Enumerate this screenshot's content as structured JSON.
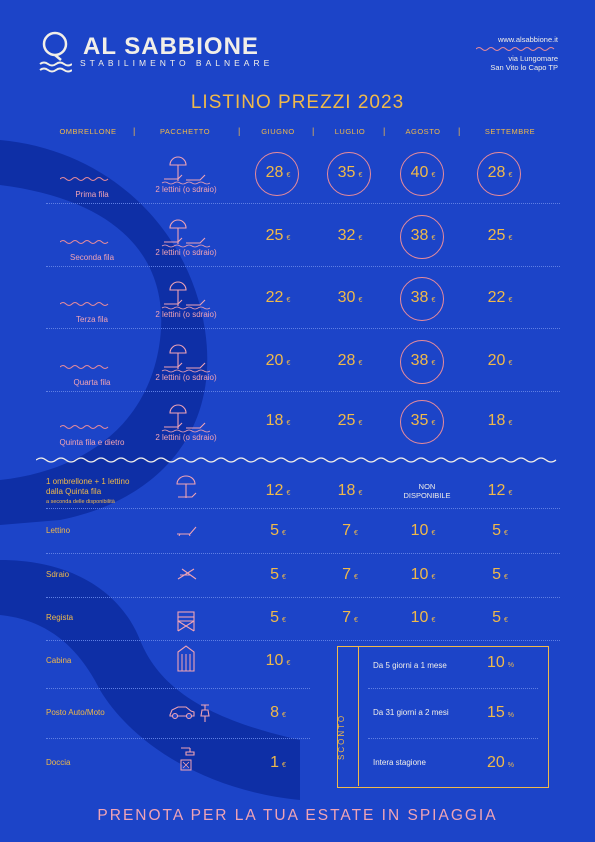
{
  "brand": {
    "name": "AL SABBIONE",
    "tagline": "STABILIMENTO BALNEARE"
  },
  "contact": {
    "website": "www.alsabbione.it",
    "address_line1": "via Lungomare",
    "address_line2": "San Vito lo Capo TP"
  },
  "title": "LISTINO PREZZI 2023",
  "columns": [
    "OMBRELLONE",
    "PACCHETTO",
    "GIUGNO",
    "LUGLIO",
    "AGOSTO",
    "SETTEMBRE"
  ],
  "currency": "€",
  "rows": [
    {
      "label": "Prima fila",
      "package": "2 lettini (o sdraio)",
      "prices": [
        "28",
        "35",
        "40",
        "28"
      ]
    },
    {
      "label": "Seconda fila",
      "package": "2 lettini (o sdraio)",
      "prices": [
        "25",
        "32",
        "38",
        "25"
      ]
    },
    {
      "label": "Terza fila",
      "package": "2 lettini (o sdraio)",
      "prices": [
        "22",
        "30",
        "38",
        "22"
      ]
    },
    {
      "label": "Quarta fila",
      "package": "2 lettini (o sdraio)",
      "prices": [
        "20",
        "28",
        "38",
        "20"
      ]
    },
    {
      "label": "Quinta fila e dietro",
      "package": "2 lettini (o sdraio)",
      "prices": [
        "18",
        "25",
        "35",
        "18"
      ]
    }
  ],
  "extras": [
    {
      "label_line1": "1 ombrellone + 1 lettino",
      "label_line2": "dalla Quinta fila",
      "note": "a seconda delle disponibilità",
      "prices": [
        "12",
        "18",
        "",
        "12"
      ],
      "unavailable_line1": "NON",
      "unavailable_line2": "DISPONIBILE"
    },
    {
      "label": "Lettino",
      "prices": [
        "5",
        "7",
        "10",
        "5"
      ]
    },
    {
      "label": "Sdraio",
      "prices": [
        "5",
        "7",
        "10",
        "5"
      ]
    },
    {
      "label": "Regista",
      "prices": [
        "5",
        "7",
        "10",
        "5"
      ]
    },
    {
      "label": "Cabina",
      "price": "10"
    },
    {
      "label": "Posto Auto/Moto",
      "price": "8"
    },
    {
      "label": "Doccia",
      "price": "1"
    }
  ],
  "discounts": {
    "title": "SCONTO",
    "items": [
      {
        "label": "Da 5 giorni a 1 mese",
        "value": "10",
        "unit": "%"
      },
      {
        "label": "Da 31 giorni a 2 mesi",
        "value": "15",
        "unit": "%"
      },
      {
        "label": "Intera stagione",
        "value": "20",
        "unit": "%"
      }
    ]
  },
  "footer": "PRENOTA PER LA TUA ESTATE IN SPIAGGIA",
  "colors": {
    "background": "#1c44c8",
    "accent": "#f0b94a",
    "pink": "#f0a3b5",
    "wave": "#0e2fa6",
    "text_light": "#f2efe8"
  },
  "icons": [
    "logo-wave-icon",
    "umbrella-loungers-icon",
    "wave-line-icon",
    "lounger-icon",
    "deckchair-icon",
    "director-chair-icon",
    "cabin-icon",
    "car-icon",
    "scooter-icon",
    "shower-icon"
  ]
}
